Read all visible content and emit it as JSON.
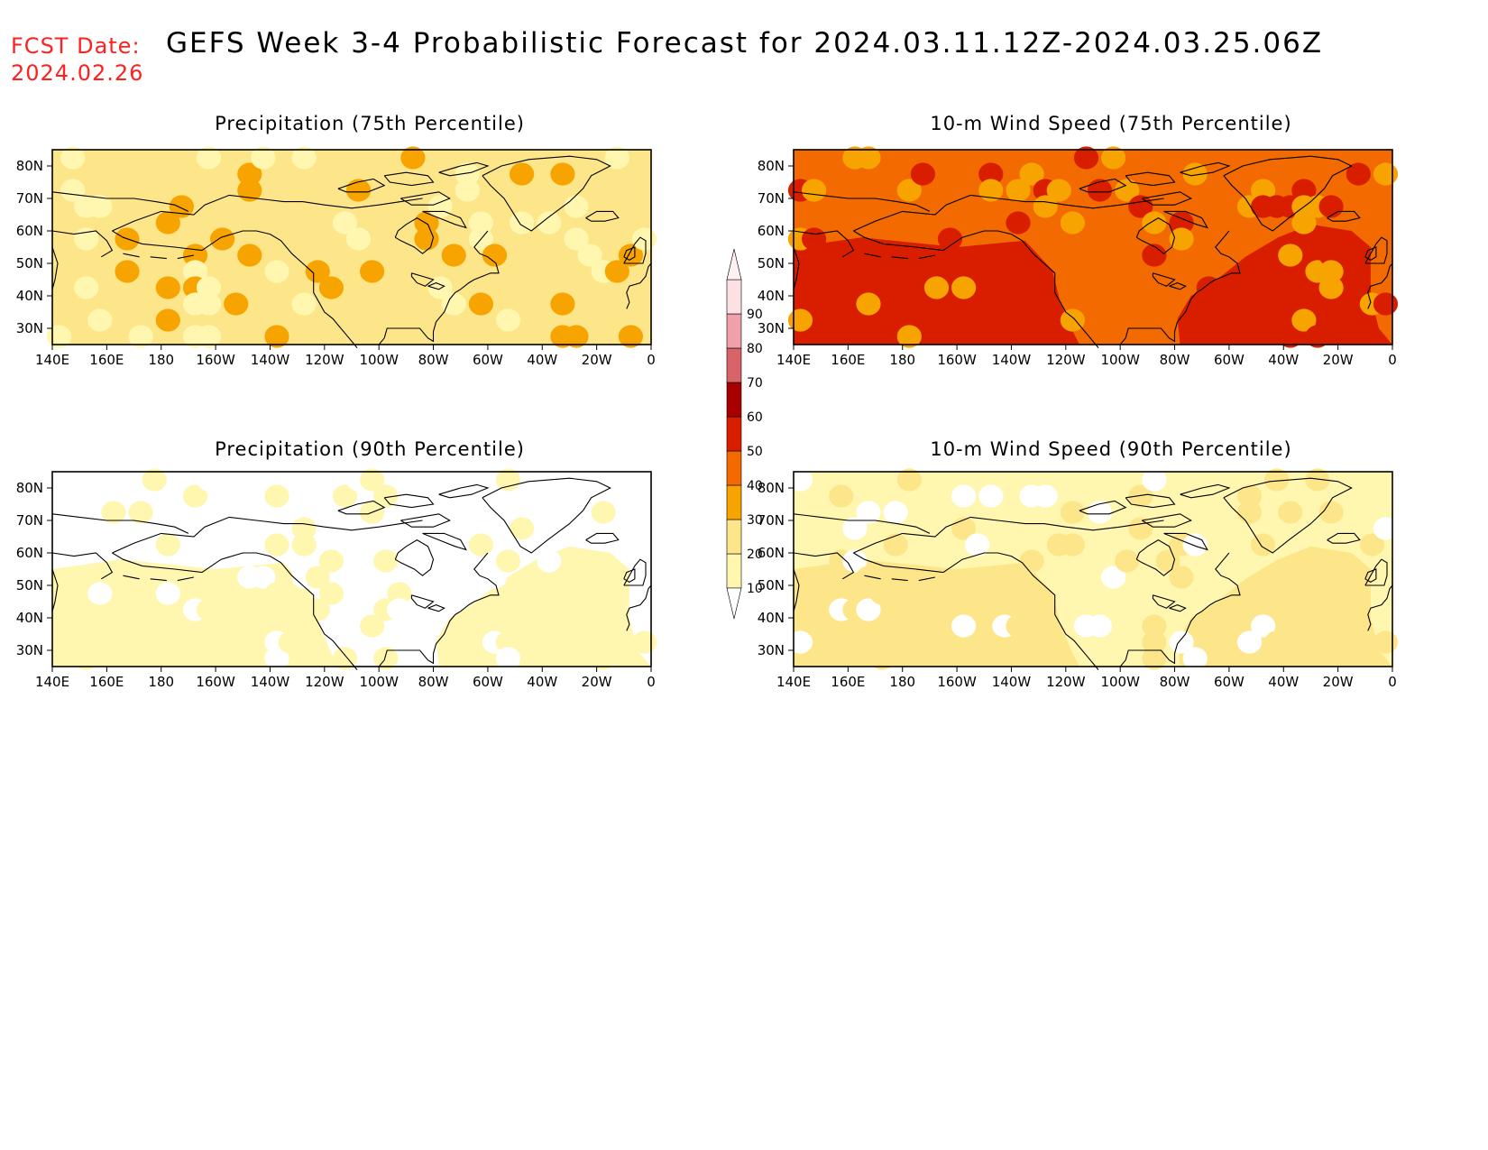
{
  "header": {
    "fcst_label": "FCST Date:",
    "fcst_date": "2024.02.26",
    "title": "GEFS Week 3-4 Probabilistic Forecast for 2024.03.11.12Z-2024.03.25.06Z"
  },
  "axes": {
    "lon_labels": [
      "140E",
      "160E",
      "180",
      "160W",
      "140W",
      "120W",
      "100W",
      "80W",
      "60W",
      "40W",
      "20W",
      "0"
    ],
    "lat_labels": [
      "80N",
      "70N",
      "60N",
      "50N",
      "40N",
      "30N"
    ]
  },
  "panels": [
    {
      "id": "precip-75",
      "title": "Precipitation (75th Percentile)",
      "base_level": 20,
      "ocean_level": 20,
      "north_level": 20
    },
    {
      "id": "wind-75",
      "title": "10-m Wind Speed (75th Percentile)",
      "base_level": 40,
      "ocean_level": 50,
      "north_level": 40
    },
    {
      "id": "precip-90",
      "title": "Precipitation (90th Percentile)",
      "base_level": 0,
      "ocean_level": 10,
      "north_level": 0
    },
    {
      "id": "wind-90",
      "title": "10-m Wind Speed (90th Percentile)",
      "base_level": 10,
      "ocean_level": 20,
      "north_level": 10
    }
  ],
  "colorbar": {
    "levels": [
      10,
      20,
      30,
      40,
      50,
      60,
      70,
      80,
      90
    ],
    "colors": [
      "#fff7b0",
      "#fde68a",
      "#f7a400",
      "#f26a00",
      "#d91e00",
      "#a80000",
      "#d8646a",
      "#f0a0a8",
      "#fce0e4"
    ],
    "labels": [
      "10",
      "20",
      "30",
      "40",
      "50",
      "60",
      "70",
      "80",
      "90"
    ]
  }
}
